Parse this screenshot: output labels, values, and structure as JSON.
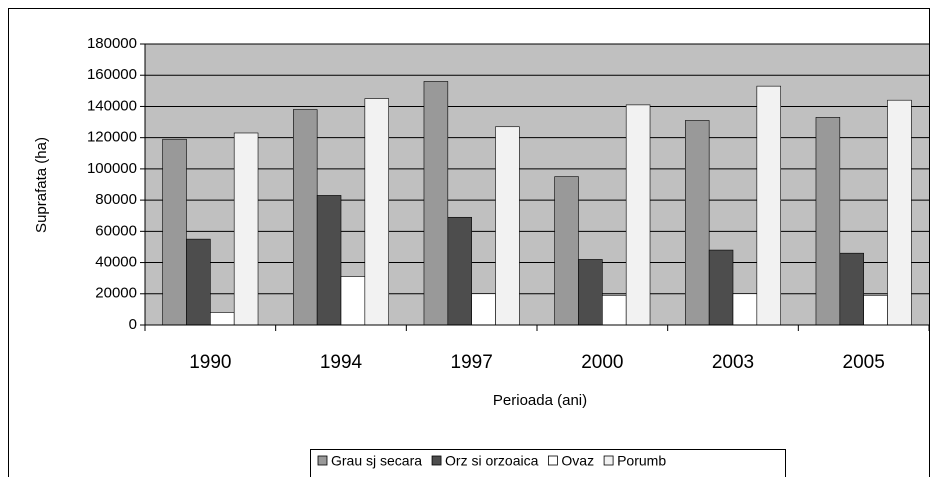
{
  "chart_data": {
    "type": "bar",
    "x_label": "Perioada (ani)",
    "y_label": "Suprafata (ha)",
    "categories": [
      "1990",
      "1994",
      "1997",
      "2000",
      "2003",
      "2005"
    ],
    "series": [
      {
        "name": "Grau sj secara",
        "color": "#999999",
        "values": [
          119000,
          138000,
          156000,
          95000,
          131000,
          133000
        ]
      },
      {
        "name": "Orz si orzoaica",
        "color": "#4d4d4d",
        "values": [
          55000,
          83000,
          69000,
          42000,
          48000,
          46000
        ]
      },
      {
        "name": "Ovaz",
        "color": "#ffffff",
        "values": [
          8000,
          31000,
          20000,
          19000,
          20000,
          19000
        ]
      },
      {
        "name": "Porumb",
        "color": "#f2f2f2",
        "values": [
          123000,
          145000,
          127000,
          141000,
          153000,
          144000
        ]
      }
    ],
    "ylim": [
      0,
      180000
    ],
    "yticks": [
      0,
      20000,
      40000,
      60000,
      80000,
      100000,
      120000,
      140000,
      160000,
      180000
    ],
    "grid": true,
    "plot_background": "#c0c0c0",
    "legend": "bottom"
  }
}
